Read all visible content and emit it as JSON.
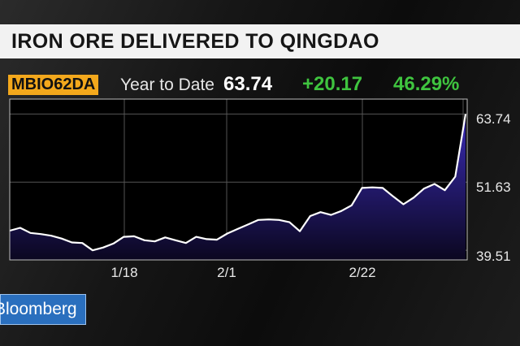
{
  "title": "IRON ORE DELIVERED TO QINGDAO",
  "ticker": {
    "symbol": "MBIO62DA",
    "period": "Year to Date",
    "last": "63.74",
    "change": "+20.17",
    "change_pct": "46.29%"
  },
  "logo_text": "Bloomberg",
  "colors": {
    "accent_orange": "#f3a81c",
    "positive_green": "#3fc43f",
    "line": "#ffffff",
    "area_top": "#3a2bb5",
    "area_bottom": "#0b0720",
    "logo_blue": "#2a6fbe"
  },
  "chart_data": {
    "type": "area",
    "title": "IRON ORE DELIVERED TO QINGDAO",
    "x_tick_labels": [
      "1/18",
      "2/1",
      "2/22"
    ],
    "y_tick_labels": [
      "63.74",
      "51.63",
      "39.51"
    ],
    "ylim": [
      37.8,
      66.4
    ],
    "grid": true,
    "series": [
      {
        "values": [
          43.0,
          43.5,
          42.6,
          42.4,
          42.1,
          41.6,
          40.9,
          40.8,
          39.5,
          40.0,
          40.7,
          41.9,
          42.0,
          41.3,
          41.1,
          41.8,
          41.3,
          40.8,
          41.9,
          41.5,
          41.4,
          42.5,
          43.3,
          44.1,
          44.9,
          45.0,
          44.9,
          44.5,
          42.9,
          45.6,
          46.3,
          45.8,
          46.5,
          47.5,
          50.6,
          50.7,
          50.6,
          49.1,
          47.7,
          48.9,
          50.5,
          51.3,
          50.2,
          52.6,
          63.74
        ]
      }
    ]
  }
}
